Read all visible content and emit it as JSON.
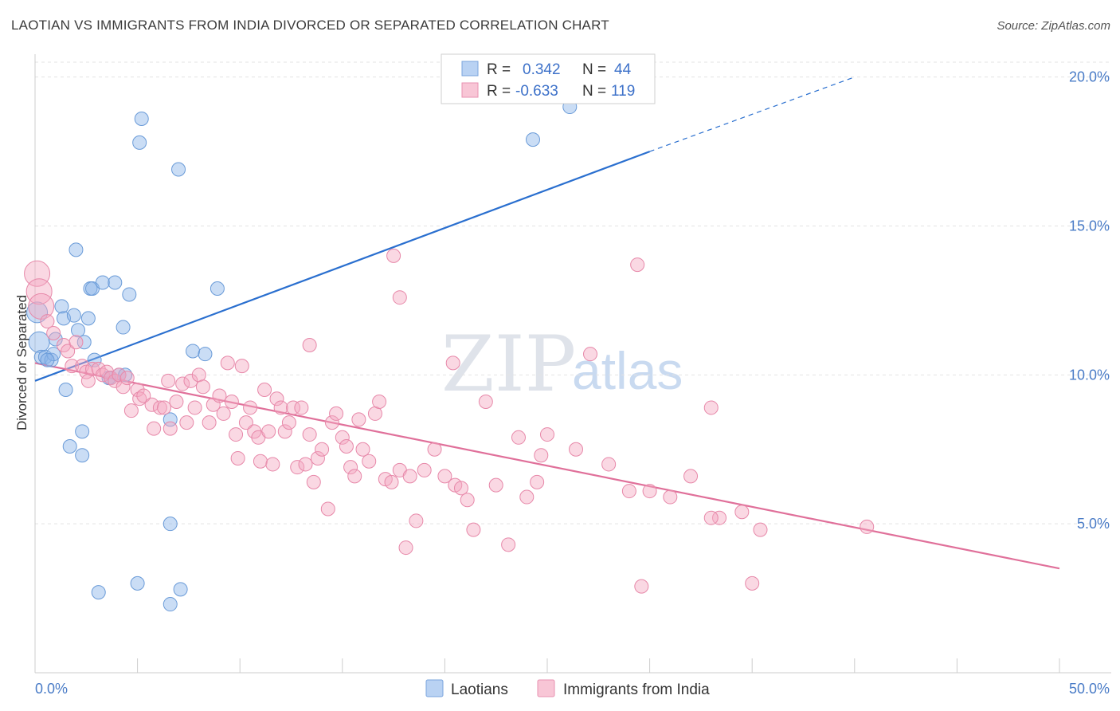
{
  "title": "LAOTIAN VS IMMIGRANTS FROM INDIA DIVORCED OR SEPARATED CORRELATION CHART",
  "source": "Source: ZipAtlas.com",
  "watermark": {
    "zip": "ZIP",
    "atlas": "atlas"
  },
  "legend": {
    "r_label": "R =",
    "n_label": "N =",
    "rows": [
      {
        "r": "0.342",
        "n": "44"
      },
      {
        "r": "-0.633",
        "n": "119"
      }
    ]
  },
  "chart_data": {
    "type": "scatter",
    "title": "LAOTIAN VS IMMIGRANTS FROM INDIA DIVORCED OR SEPARATED CORRELATION CHART",
    "xlabel": "",
    "ylabel": "Divorced or Separated",
    "xlim": [
      0,
      50
    ],
    "ylim": [
      0,
      20.5
    ],
    "x_tick_labels": [
      "0.0%",
      "50.0%"
    ],
    "y_ticks": [
      5,
      10,
      15,
      20
    ],
    "y_tick_labels": [
      "5.0%",
      "10.0%",
      "15.0%",
      "20.0%"
    ],
    "grid": true,
    "legend_position": "top-center",
    "series": [
      {
        "name": "Laotians",
        "color": "#8ab4e8",
        "stroke": "#6a9bd8",
        "r": 0.342,
        "n": 44,
        "trend": {
          "x0": 0,
          "y0": 9.8,
          "x1": 30,
          "y1": 17.5,
          "dash_x1": 40,
          "dash_y1": 20.0,
          "color": "#2a6fcf"
        },
        "points": [
          [
            0.1,
            12.1
          ],
          [
            0.2,
            11.1
          ],
          [
            0.3,
            10.6
          ],
          [
            0.5,
            10.6
          ],
          [
            0.8,
            10.5
          ],
          [
            0.9,
            10.7
          ],
          [
            1.0,
            11.2
          ],
          [
            1.3,
            12.3
          ],
          [
            1.4,
            11.9
          ],
          [
            1.5,
            9.5
          ],
          [
            1.7,
            7.6
          ],
          [
            1.9,
            12.0
          ],
          [
            2.0,
            14.2
          ],
          [
            2.1,
            11.5
          ],
          [
            2.3,
            8.1
          ],
          [
            2.3,
            7.3
          ],
          [
            2.4,
            11.1
          ],
          [
            2.6,
            11.9
          ],
          [
            2.7,
            12.9
          ],
          [
            2.9,
            10.5
          ],
          [
            2.8,
            12.9
          ],
          [
            3.1,
            2.7
          ],
          [
            3.3,
            13.1
          ],
          [
            3.7,
            9.9
          ],
          [
            3.9,
            13.1
          ],
          [
            4.1,
            10.0
          ],
          [
            4.3,
            11.6
          ],
          [
            4.4,
            10.0
          ],
          [
            4.6,
            12.7
          ],
          [
            5.0,
            3.0
          ],
          [
            5.2,
            18.6
          ],
          [
            5.1,
            17.8
          ],
          [
            6.6,
            8.5
          ],
          [
            6.6,
            2.3
          ],
          [
            6.6,
            5.0
          ],
          [
            7.0,
            16.9
          ],
          [
            7.1,
            2.8
          ],
          [
            7.7,
            10.8
          ],
          [
            8.3,
            10.7
          ],
          [
            8.9,
            12.9
          ],
          [
            24.3,
            17.9
          ],
          [
            26.1,
            19.0
          ],
          [
            0.6,
            10.5
          ],
          [
            3.6,
            9.9
          ]
        ]
      },
      {
        "name": "Immigrants from India",
        "color": "#f4a8c2",
        "stroke": "#e788a9",
        "r": -0.633,
        "n": 119,
        "trend": {
          "x0": 0,
          "y0": 10.4,
          "x1": 50,
          "y1": 3.5,
          "color": "#e0709a"
        },
        "points": [
          [
            0.1,
            13.4
          ],
          [
            0.2,
            12.8
          ],
          [
            0.3,
            12.3
          ],
          [
            0.6,
            11.8
          ],
          [
            0.9,
            11.4
          ],
          [
            1.4,
            11.0
          ],
          [
            1.6,
            10.8
          ],
          [
            1.8,
            10.3
          ],
          [
            2.0,
            11.1
          ],
          [
            2.3,
            10.3
          ],
          [
            2.5,
            10.1
          ],
          [
            2.6,
            9.8
          ],
          [
            2.8,
            10.2
          ],
          [
            3.1,
            10.2
          ],
          [
            3.3,
            10.0
          ],
          [
            3.5,
            10.1
          ],
          [
            3.7,
            9.9
          ],
          [
            3.9,
            9.8
          ],
          [
            4.1,
            10.0
          ],
          [
            4.3,
            9.6
          ],
          [
            4.5,
            9.9
          ],
          [
            4.7,
            8.8
          ],
          [
            5.0,
            9.5
          ],
          [
            5.1,
            9.2
          ],
          [
            5.3,
            9.3
          ],
          [
            5.7,
            9.0
          ],
          [
            5.8,
            8.2
          ],
          [
            6.1,
            8.9
          ],
          [
            6.3,
            8.9
          ],
          [
            6.5,
            9.8
          ],
          [
            6.6,
            8.2
          ],
          [
            6.9,
            9.1
          ],
          [
            7.2,
            9.7
          ],
          [
            7.4,
            8.4
          ],
          [
            7.6,
            9.8
          ],
          [
            7.8,
            8.9
          ],
          [
            8.0,
            10.0
          ],
          [
            8.2,
            9.6
          ],
          [
            8.5,
            8.4
          ],
          [
            8.7,
            9.0
          ],
          [
            9.0,
            9.3
          ],
          [
            9.2,
            8.7
          ],
          [
            9.4,
            10.4
          ],
          [
            9.6,
            9.1
          ],
          [
            9.8,
            8.0
          ],
          [
            9.9,
            7.2
          ],
          [
            10.1,
            10.3
          ],
          [
            10.3,
            8.4
          ],
          [
            10.5,
            8.9
          ],
          [
            10.7,
            8.1
          ],
          [
            10.9,
            7.9
          ],
          [
            11.0,
            7.1
          ],
          [
            11.2,
            9.5
          ],
          [
            11.4,
            8.1
          ],
          [
            11.6,
            7.0
          ],
          [
            11.8,
            9.2
          ],
          [
            12.0,
            8.9
          ],
          [
            12.2,
            8.1
          ],
          [
            12.4,
            8.4
          ],
          [
            12.6,
            8.9
          ],
          [
            12.8,
            6.9
          ],
          [
            13.0,
            8.9
          ],
          [
            13.2,
            7.0
          ],
          [
            13.4,
            8.0
          ],
          [
            13.6,
            6.4
          ],
          [
            13.8,
            7.2
          ],
          [
            14.0,
            7.5
          ],
          [
            14.3,
            5.5
          ],
          [
            14.5,
            8.4
          ],
          [
            14.7,
            8.7
          ],
          [
            15.0,
            7.9
          ],
          [
            15.2,
            7.6
          ],
          [
            15.4,
            6.9
          ],
          [
            15.6,
            6.6
          ],
          [
            15.8,
            8.5
          ],
          [
            16.0,
            7.5
          ],
          [
            16.3,
            7.1
          ],
          [
            16.6,
            8.7
          ],
          [
            16.8,
            9.1
          ],
          [
            17.1,
            6.5
          ],
          [
            17.4,
            6.4
          ],
          [
            17.8,
            6.8
          ],
          [
            18.1,
            4.2
          ],
          [
            18.3,
            6.6
          ],
          [
            18.6,
            5.1
          ],
          [
            19.0,
            6.8
          ],
          [
            19.5,
            7.5
          ],
          [
            20.0,
            6.6
          ],
          [
            20.5,
            6.3
          ],
          [
            20.8,
            6.2
          ],
          [
            21.1,
            5.8
          ],
          [
            21.4,
            4.8
          ],
          [
            22.0,
            9.1
          ],
          [
            22.5,
            6.3
          ],
          [
            23.1,
            4.3
          ],
          [
            23.6,
            7.9
          ],
          [
            24.0,
            5.9
          ],
          [
            24.5,
            6.4
          ],
          [
            24.7,
            7.3
          ],
          [
            25.0,
            8.0
          ],
          [
            26.4,
            7.5
          ],
          [
            27.1,
            10.7
          ],
          [
            28.0,
            7.0
          ],
          [
            29.0,
            6.1
          ],
          [
            29.6,
            2.9
          ],
          [
            30.0,
            6.1
          ],
          [
            31.0,
            5.9
          ],
          [
            32.0,
            6.6
          ],
          [
            33.0,
            8.9
          ],
          [
            33.4,
            5.2
          ],
          [
            34.5,
            5.4
          ],
          [
            35.0,
            3.0
          ],
          [
            35.4,
            4.8
          ],
          [
            40.6,
            4.9
          ],
          [
            13.4,
            11.0
          ],
          [
            17.8,
            12.6
          ],
          [
            17.5,
            14.0
          ],
          [
            20.4,
            10.4
          ],
          [
            29.4,
            13.7
          ],
          [
            33.0,
            5.2
          ]
        ]
      }
    ]
  },
  "bottom_legend": [
    "Laotians",
    "Immigrants from India"
  ]
}
